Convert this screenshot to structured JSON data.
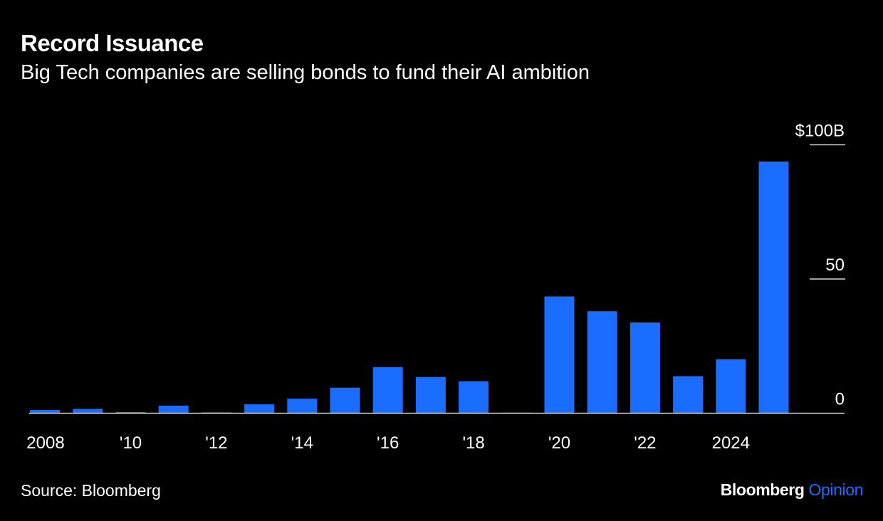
{
  "title": "Record Issuance",
  "subtitle": "Big Tech companies are selling bonds to fund their AI ambition",
  "source": "Source: Bloomberg",
  "brand": {
    "name": "Bloomberg",
    "suffix": "Opinion"
  },
  "colors": {
    "background": "#000000",
    "bar": "#1a6dff",
    "text": "#ffffff",
    "brand_accent": "#1a6dff"
  },
  "chart_data": {
    "type": "bar",
    "title": "Record Issuance",
    "subtitle": "Big Tech companies are selling bonds to fund their AI ambition",
    "categories": [
      "2008",
      "2009",
      "2010",
      "2011",
      "2012",
      "2013",
      "2014",
      "2015",
      "2016",
      "2017",
      "2018",
      "2019",
      "2020",
      "2021",
      "2022",
      "2023",
      "2024",
      "2025"
    ],
    "values": [
      1.2,
      1.6,
      0.4,
      2.8,
      0.3,
      3.3,
      5.4,
      9.5,
      17.1,
      13.5,
      11.9,
      0.2,
      43.5,
      38.0,
      33.8,
      13.8,
      20.1,
      93.8
    ],
    "x_tick_labels": [
      {
        "category": "2008",
        "label": "2008"
      },
      {
        "category": "2010",
        "label": "'10"
      },
      {
        "category": "2012",
        "label": "'12"
      },
      {
        "category": "2014",
        "label": "'14"
      },
      {
        "category": "2016",
        "label": "'16"
      },
      {
        "category": "2018",
        "label": "'18"
      },
      {
        "category": "2020",
        "label": "'20"
      },
      {
        "category": "2022",
        "label": "'22"
      },
      {
        "category": "2024",
        "label": "2024"
      }
    ],
    "y_ticks": [
      {
        "value": 0,
        "label": "0"
      },
      {
        "value": 50,
        "label": "50"
      },
      {
        "value": 100,
        "label": "$100B"
      }
    ],
    "ylim": [
      0,
      100
    ],
    "y_axis_position": "right",
    "grid": false,
    "legend": "none"
  }
}
